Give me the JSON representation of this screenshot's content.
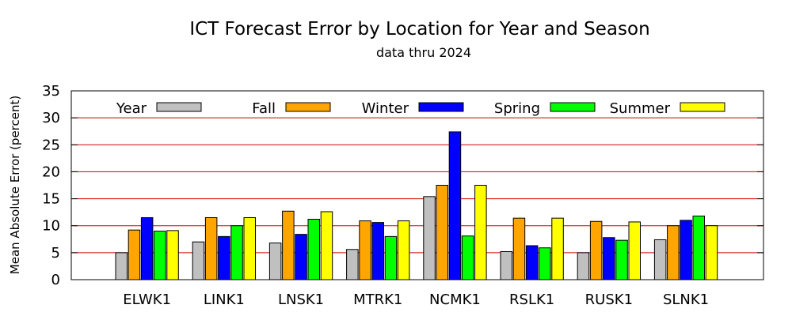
{
  "chart_data": {
    "type": "bar",
    "title": "ICT Forecast Error by Location for Year and Season",
    "subtitle": "data thru 2024",
    "xlabel": "",
    "ylabel": "Mean Absolute Error (percent)",
    "ylim": [
      0,
      35
    ],
    "yticks": [
      "0",
      "5",
      "10",
      "15",
      "20",
      "25",
      "30",
      "35"
    ],
    "grid": true,
    "legend_position": "top",
    "categories": [
      "ELWK1",
      "LINK1",
      "LNSK1",
      "MTRK1",
      "NCMK1",
      "RSLK1",
      "RUSK1",
      "SLNK1"
    ],
    "series": [
      {
        "name": "Year",
        "color": "#c0c0c0",
        "values": [
          5.0,
          7.0,
          6.8,
          5.6,
          15.4,
          5.2,
          5.0,
          7.4
        ]
      },
      {
        "name": "Fall",
        "color": "#ffa500",
        "values": [
          9.2,
          11.5,
          12.7,
          10.9,
          17.5,
          11.4,
          10.8,
          10.0
        ]
      },
      {
        "name": "Winter",
        "color": "#0000ff",
        "values": [
          11.5,
          8.0,
          8.4,
          10.6,
          27.4,
          6.3,
          7.8,
          11.0
        ]
      },
      {
        "name": "Spring",
        "color": "#00ff00",
        "values": [
          9.0,
          10.0,
          11.2,
          8.0,
          8.1,
          5.9,
          7.3,
          11.8
        ]
      },
      {
        "name": "Summer",
        "color": "#ffff00",
        "values": [
          9.1,
          11.5,
          12.6,
          10.9,
          17.5,
          11.4,
          10.7,
          10.0
        ]
      }
    ]
  }
}
